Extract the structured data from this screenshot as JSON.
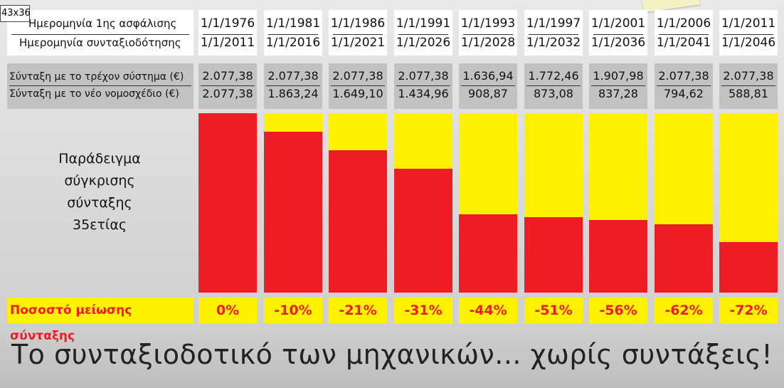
{
  "top_tag": "43x36",
  "rows": {
    "first_insurance_label": "Ημερομηνία 1ης ασφάλισης",
    "retirement_label": "Ημερομηνία συνταξιοδότησης",
    "current_system_label": "Σύνταξη με το τρέχον σύστημα (€)",
    "new_bill_label": "Σύνταξη με το νέο νομοσχέδιο (€)",
    "reduction_label": "Ποσοστό μείωσης σύνταξης"
  },
  "sample_label": [
    "Παράδειγμα",
    "σύγκρισης",
    "σύνταξης",
    "35ετίας"
  ],
  "footer_title": "Το συνταξιοδοτικό των μηχανικών... χωρίς συντάξεις!",
  "colors": {
    "new_pension": "#ee1c25",
    "reduction": "#fff200",
    "panel_grey": "#c2c2c2"
  },
  "chart_data": {
    "type": "bar",
    "categories": [
      "1/1/1976",
      "1/1/1981",
      "1/1/1986",
      "1/1/1991",
      "1/1/1993",
      "1/1/1997",
      "1/1/2001",
      "1/1/2006",
      "1/1/2011"
    ],
    "retirement_dates": [
      "1/1/2011",
      "1/1/2016",
      "1/1/2021",
      "1/1/2026",
      "1/1/2028",
      "1/1/2032",
      "1/1/2036",
      "1/1/2041",
      "1/1/2046"
    ],
    "current_labels": [
      "2.077,38",
      "2.077,38",
      "2.077,38",
      "2.077,38",
      "1.636,94",
      "1.772,46",
      "1.907,98",
      "2.077,38",
      "2.077,38"
    ],
    "new_labels": [
      "2.077,38",
      "1.863,24",
      "1.649,10",
      "1.434,96",
      "908,87",
      "873,08",
      "837,28",
      "794,62",
      "588,81"
    ],
    "reduction_labels": [
      "0%",
      "-10%",
      "-21%",
      "-31%",
      "-44%",
      "-51%",
      "-56%",
      "-62%",
      "-72%"
    ],
    "series": [
      {
        "values": [
          2077.38,
          1863.24,
          1649.1,
          1434.96,
          908.87,
          873.08,
          837.28,
          794.62,
          588.81
        ]
      }
    ],
    "stacked_remainder_values": [
      0,
      214.14,
      428.28,
      642.42,
      1168.51,
      1204.3,
      1240.1,
      1282.76,
      1488.57
    ],
    "ylim": [
      0,
      2077.38
    ]
  }
}
